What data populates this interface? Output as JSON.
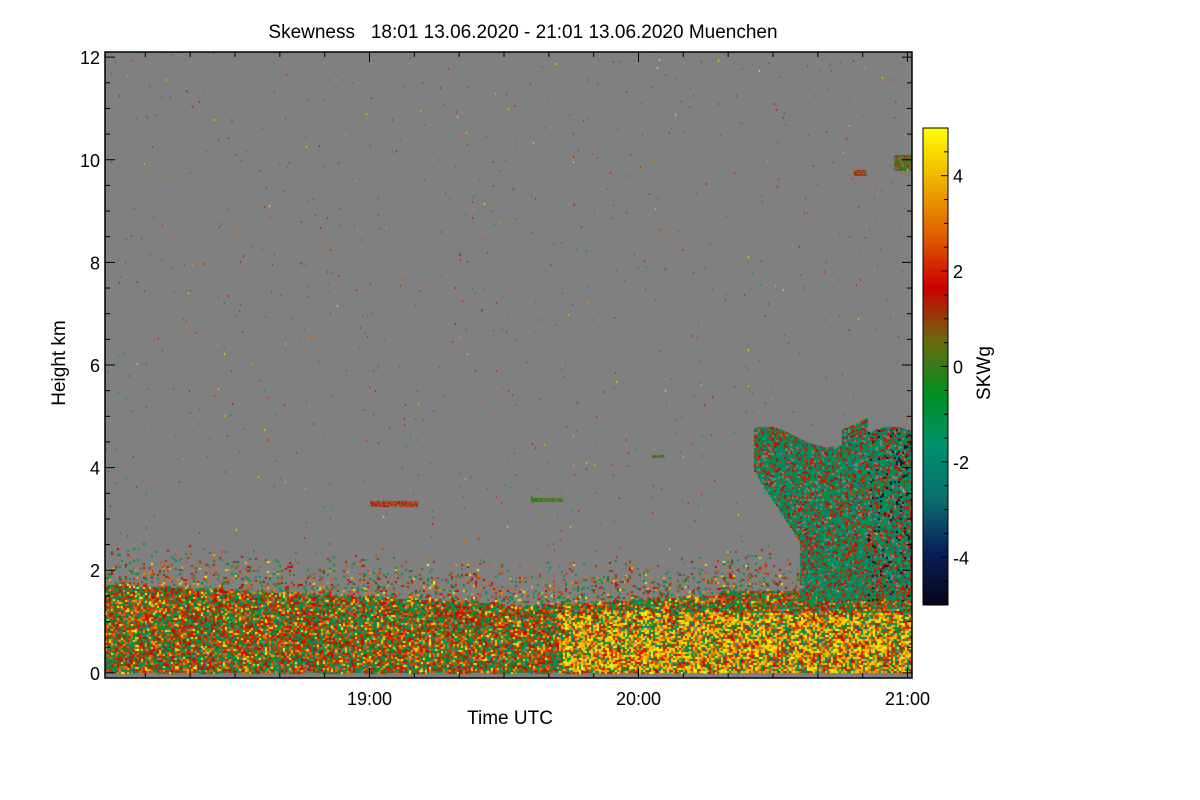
{
  "chart_data": {
    "type": "heatmap",
    "title": "Skewness   18:01 13.06.2020 - 21:01 13.06.2020 Muenchen",
    "xlabel": "Time UTC",
    "ylabel": "Height km",
    "x_range_utc_hours": [
      18.0167,
      21.0167
    ],
    "x_ticks": [
      {
        "value": 19,
        "label": "19:00"
      },
      {
        "value": 20,
        "label": "20:00"
      },
      {
        "value": 21,
        "label": "21:00"
      }
    ],
    "x_minor_tick_minutes": 10,
    "ylim": [
      -0.1,
      12.1
    ],
    "y_ticks": [
      {
        "value": 0,
        "label": "0"
      },
      {
        "value": 2,
        "label": "2"
      },
      {
        "value": 4,
        "label": "4"
      },
      {
        "value": 6,
        "label": "6"
      },
      {
        "value": 8,
        "label": "8"
      },
      {
        "value": 10,
        "label": "10"
      },
      {
        "value": 12,
        "label": "12"
      }
    ],
    "colorbar": {
      "label": "SKWg",
      "range": [
        -5,
        5
      ],
      "ticks": [
        {
          "value": 4,
          "label": "4"
        },
        {
          "value": 2,
          "label": "2"
        },
        {
          "value": 0,
          "label": "0"
        },
        {
          "value": -2,
          "label": "-2"
        },
        {
          "value": -4,
          "label": "-4"
        }
      ],
      "colors": [
        "#05051a",
        "#0a1e5a",
        "#0a6e6e",
        "#009070",
        "#009020",
        "#6a6a10",
        "#cc0000",
        "#e06000",
        "#f0b000",
        "#ffff00"
      ]
    },
    "no_data_color": "#808080"
  }
}
